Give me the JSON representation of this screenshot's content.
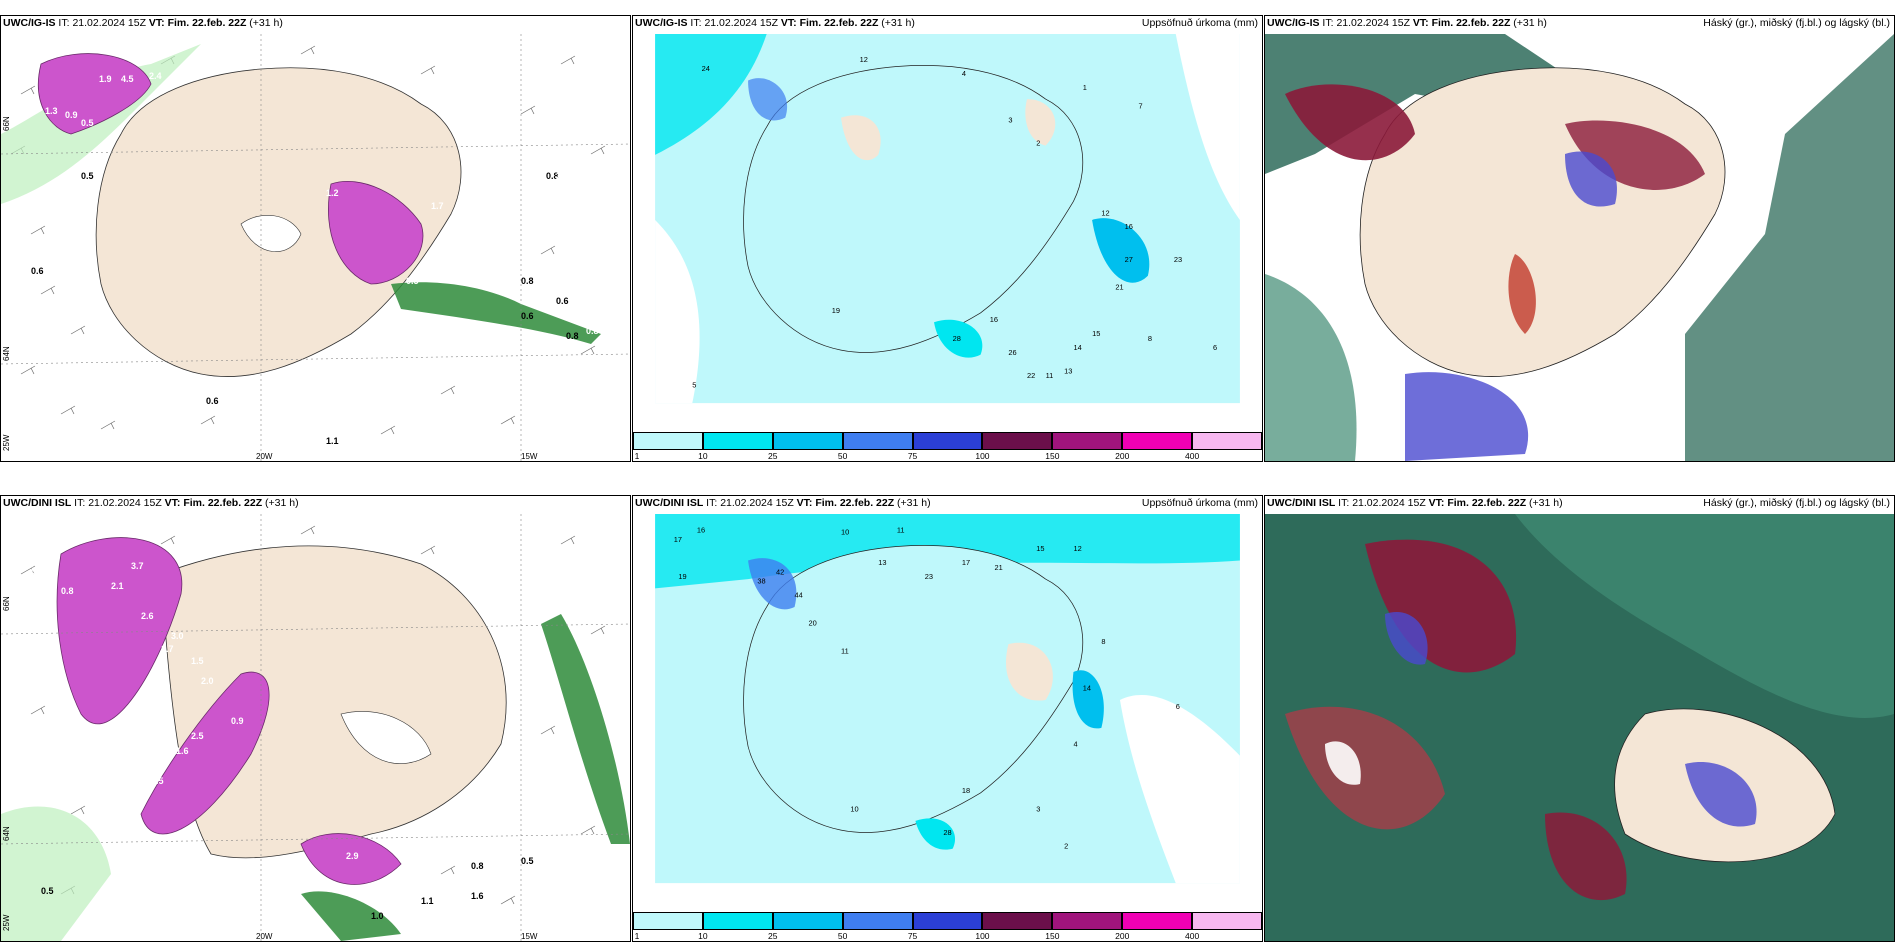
{
  "panels": [
    {
      "model": "UWC/IG-IS",
      "it_label": "IT:",
      "it": "21.02.2024 15Z",
      "vt_label": "VT:",
      "vt": "Fim. 22.feb. 22Z",
      "lead": "(+31 h)",
      "title": "",
      "type": "precip-wind",
      "values": [
        "1.9",
        "4.5",
        "2.4",
        "7",
        "1.3",
        "0.9",
        "0.5",
        "0.5",
        "1.2",
        "1.7",
        "5.2",
        "2.5",
        "3.1",
        "2.1",
        "0.8",
        "0.5",
        "0.6",
        "0.8",
        "0.6",
        "2.1",
        "0.6",
        "0.8",
        "1.1",
        "0.7",
        "0.6",
        "0.8"
      ]
    },
    {
      "model": "UWC/IG-IS",
      "it_label": "IT:",
      "it": "21.02.2024 15Z",
      "vt_label": "VT:",
      "vt": "Fim. 22.feb. 22Z",
      "lead": "(+31 h)",
      "title": "Uppsöfnuð úrkoma (mm)",
      "type": "accum",
      "values": [
        "24",
        "12",
        "4",
        "3",
        "2",
        "1",
        "7",
        "19",
        "16",
        "12",
        "27",
        "23",
        "21",
        "16",
        "26",
        "28",
        "15",
        "11",
        "14",
        "13",
        "22",
        "8",
        "6",
        "5"
      ]
    },
    {
      "model": "UWC/IG-IS",
      "it_label": "IT:",
      "it": "21.02.2024 15Z",
      "vt_label": "VT:",
      "vt": "Fim. 22.feb. 22Z",
      "lead": "(+31 h)",
      "title": "Háský (gr.), miðský (fj.bl.) og lágský (bl.)",
      "type": "cloud"
    },
    {
      "model": "UWC/DINI ISL",
      "it_label": "IT:",
      "it": "21.02.2024 15Z",
      "vt_label": "VT:",
      "vt": "Fim. 22.feb. 22Z",
      "lead": "(+31 h)",
      "title": "",
      "type": "precip-wind",
      "values": [
        "1.0",
        "0.2",
        "3.7",
        "2.1",
        "0.8",
        "2.6",
        "3.0",
        "2.7",
        "1.5",
        "2.5",
        "1.6",
        "0.9",
        "1.2",
        "1.5",
        "0.5",
        "2.9",
        "1.1",
        "1.0",
        "0.5",
        "1.6",
        "0.8",
        "2.0"
      ]
    },
    {
      "model": "UWC/DINI ISL",
      "it_label": "IT:",
      "it": "21.02.2024 15Z",
      "vt_label": "VT:",
      "vt": "Fim. 22.feb. 22Z",
      "lead": "(+31 h)",
      "title": "Uppsöfnuð úrkoma (mm)",
      "type": "accum",
      "values": [
        "17",
        "16",
        "10",
        "11",
        "38",
        "42",
        "44",
        "19",
        "20",
        "13",
        "23",
        "21",
        "14",
        "17",
        "15",
        "12",
        "11",
        "8",
        "6",
        "4",
        "3",
        "2",
        "18",
        "28",
        "10"
      ]
    },
    {
      "model": "UWC/DINI ISL",
      "it_label": "IT:",
      "it": "21.02.2024 15Z",
      "vt_label": "VT:",
      "vt": "Fim. 22.feb. 22Z",
      "lead": "(+31 h)",
      "title": "Háský (gr.), miðský (fj.bl.) og lágský (bl.)",
      "type": "cloud"
    }
  ],
  "colorbar": {
    "labels": [
      "1",
      "10",
      "25",
      "50",
      "75",
      "100",
      "150",
      "200",
      "400"
    ],
    "colors": [
      "#bff8fb",
      "#00e6f0",
      "#00bfee",
      "#3f7ef0",
      "#2b3fd6",
      "#6b0f4a",
      "#a0147c",
      "#f000b4",
      "#f7b8f0"
    ]
  },
  "axis": {
    "lon": [
      "20W",
      "15W"
    ],
    "lat": [
      "66N",
      "64N",
      "25W"
    ]
  },
  "colors": {
    "land": "#f4e6d6",
    "precip": "#cc55cc",
    "snow_green": "#2e8b3a",
    "cloud_high": "#2e6b5a",
    "cloud_mid": "#8b1a3a",
    "cloud_low": "#4a4ad0"
  }
}
